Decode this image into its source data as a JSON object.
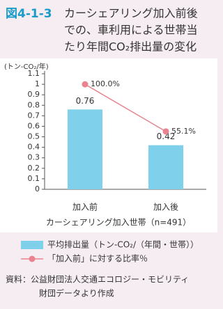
{
  "chart_data": {
    "type": "bar",
    "figure_label": "図4-1-3",
    "title_lines": [
      "カーシェアリング加入前後",
      "での、車利用による世帯当",
      "たり年間CO₂排出量の変化"
    ],
    "y_axis_label": "(トン-CO₂/年)",
    "x_axis_label": "カーシェアリング加入世帯（n=491）",
    "categories": [
      "加入前",
      "加入後"
    ],
    "ylim": [
      0,
      1.1
    ],
    "yticks": [
      0,
      0.1,
      0.2,
      0.3,
      0.4,
      0.5,
      0.6,
      0.7,
      0.8,
      0.9,
      1,
      1.1
    ],
    "y2lim": [
      0,
      110
    ],
    "series": [
      {
        "name": "平均排出量（トン-CO₂/（年間・世帯））",
        "type": "bar",
        "color": "#7fd0ea",
        "values": [
          0.76,
          0.42
        ]
      },
      {
        "name": "「加入前」に対する比率％",
        "type": "line",
        "axis": "y2",
        "color": "#e8838f",
        "values": [
          100,
          55.1
        ],
        "value_labels": [
          "100.0%",
          "55.1%"
        ]
      }
    ],
    "source_lines": [
      "資料：公益財団法人交通エコロジー・モビリティ",
      "財団データより作成"
    ]
  }
}
